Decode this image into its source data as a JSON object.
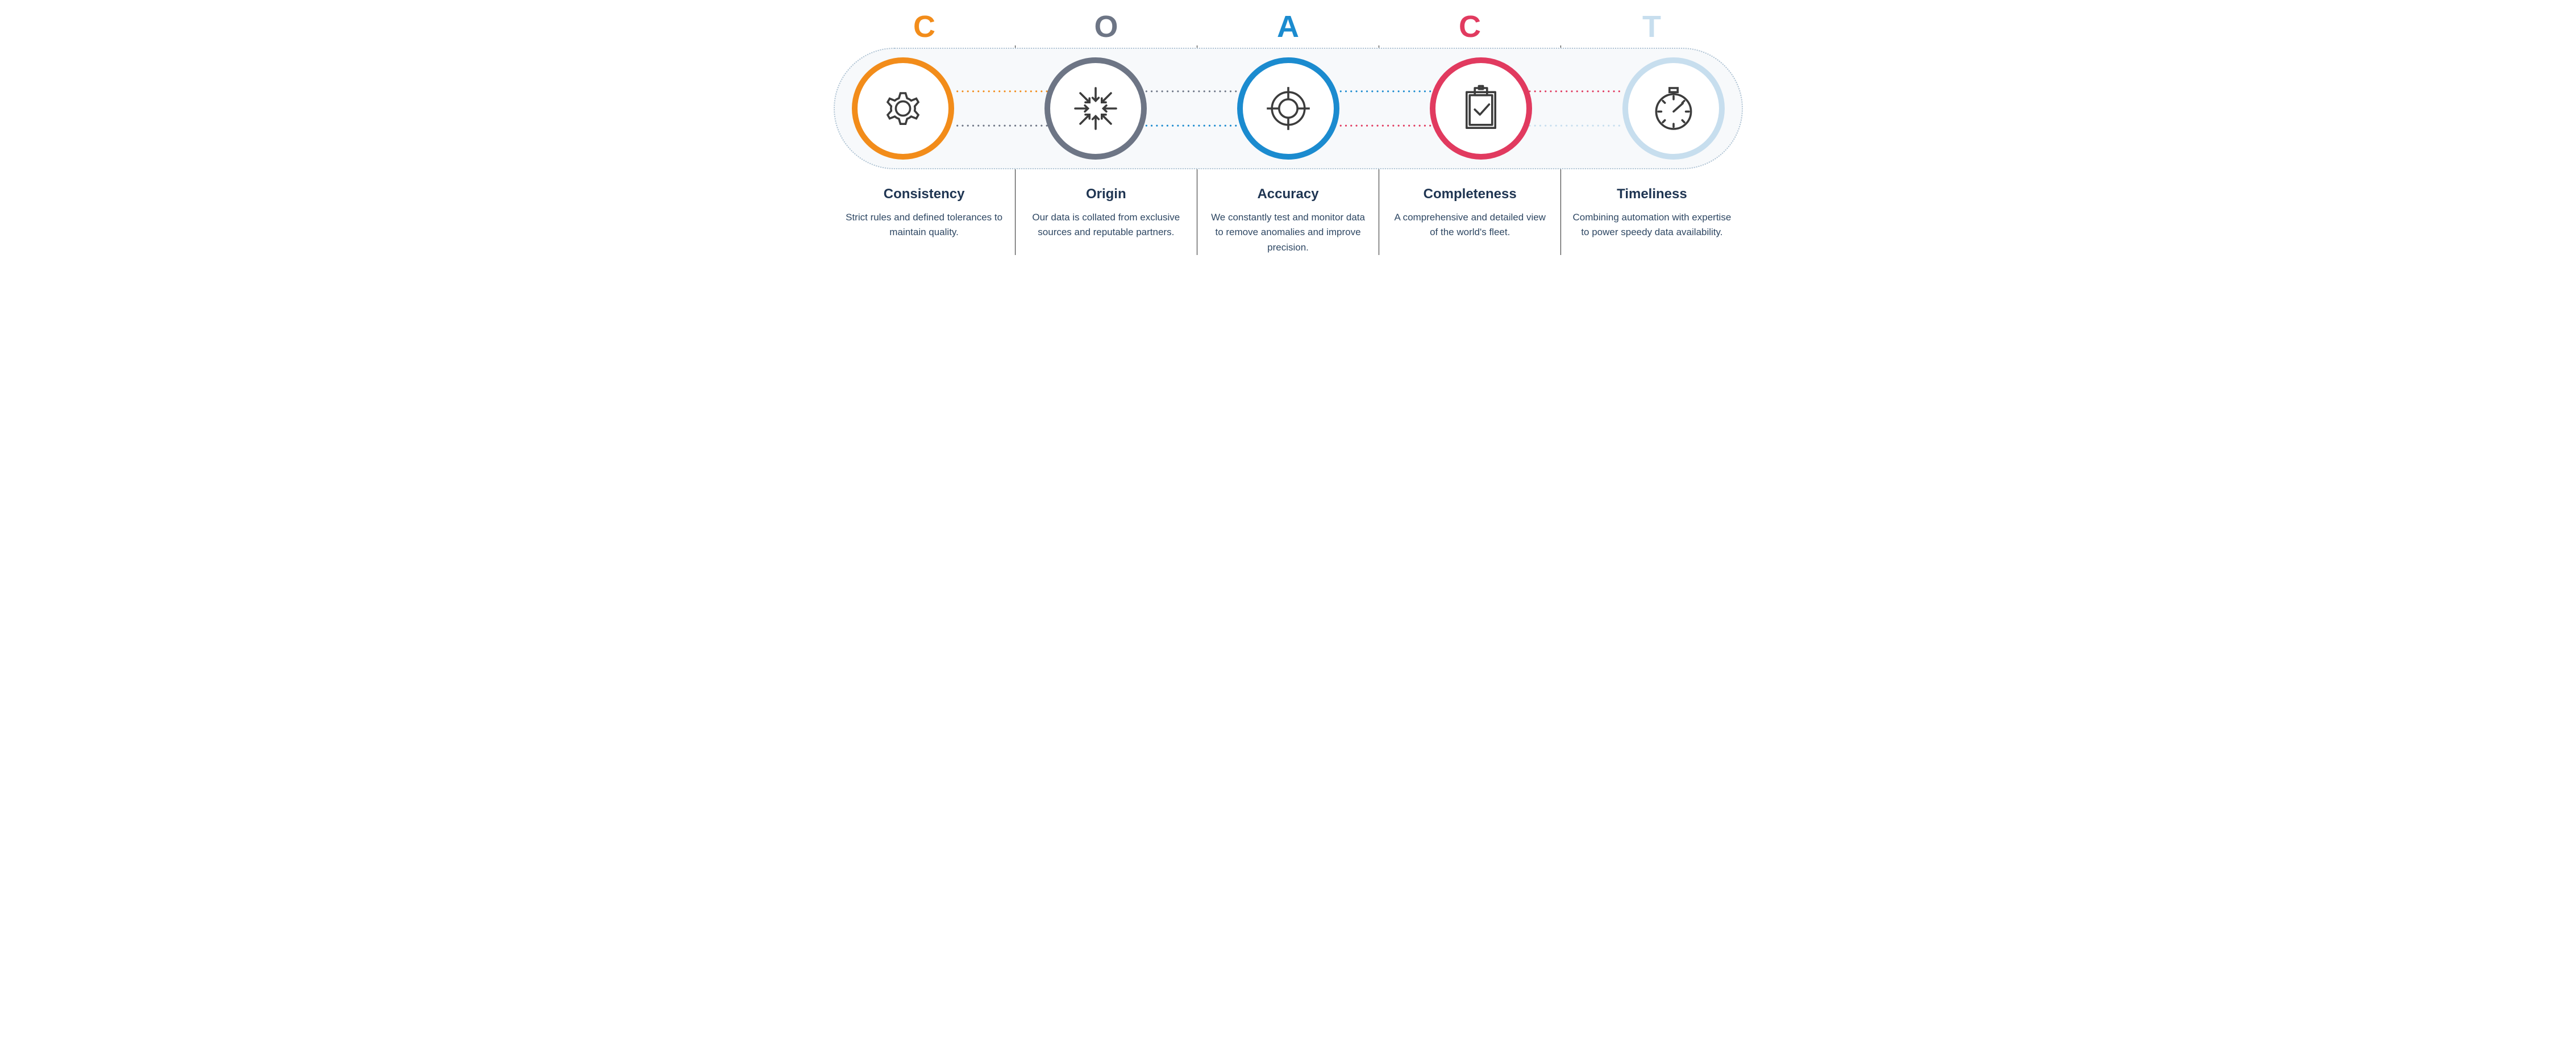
{
  "type": "infographic",
  "acronym": "COACT",
  "background_color": "#ffffff",
  "pill_background": "#f7f9fb",
  "pill_border_color": "#b0c4d4",
  "pill_border_style": "dotted",
  "pill_border_radius": 120,
  "divider_color": "#2a2a2a",
  "icon_stroke_color": "#3c3c3c",
  "icon_stroke_width": 3,
  "letter_fontsize": 54,
  "letter_fontweight": 700,
  "circle_diameter": 180,
  "circle_border_width": 10,
  "title_color": "#1f3552",
  "title_fontsize": 24,
  "title_fontweight": 700,
  "desc_color": "#2e4763",
  "desc_fontsize": 17,
  "connector_dot_radius": 1.6,
  "items": [
    {
      "letter": "C",
      "letter_color": "#f28c1a",
      "circle_color": "#f28c1a",
      "icon": "gear",
      "title": "Consistency",
      "description": "Strict rules and defined tolerances to maintain quality."
    },
    {
      "letter": "O",
      "letter_color": "#6d7585",
      "circle_color": "#6d7585",
      "icon": "converge",
      "title": "Origin",
      "description": "Our data is collated from exclusive sources and reputable partners."
    },
    {
      "letter": "A",
      "letter_color": "#1b8bcf",
      "circle_color": "#1b8bcf",
      "icon": "crosshair",
      "title": "Accuracy",
      "description": "We constantly test and monitor data to remove anomalies and improve precision."
    },
    {
      "letter": "C",
      "letter_color": "#e13a5f",
      "circle_color": "#e13a5f",
      "icon": "clipboard",
      "title": "Completeness",
      "description": "A comprehensive and detailed view of the world's fleet."
    },
    {
      "letter": "T",
      "letter_color": "#c7deee",
      "circle_color": "#c7deee",
      "icon": "stopwatch",
      "title": "Timeliness",
      "description": "Combining automation with expertise to power speedy data availability."
    }
  ],
  "connectors": [
    {
      "from": 0,
      "to": 1,
      "top_color": "#f28c1a",
      "bottom_color": "#6d7585"
    },
    {
      "from": 1,
      "to": 2,
      "top_color": "#6d7585",
      "bottom_color": "#1b8bcf"
    },
    {
      "from": 2,
      "to": 3,
      "top_color": "#1b8bcf",
      "bottom_color": "#e13a5f"
    },
    {
      "from": 3,
      "to": 4,
      "top_color": "#e13a5f",
      "bottom_color": "#c7deee"
    }
  ]
}
